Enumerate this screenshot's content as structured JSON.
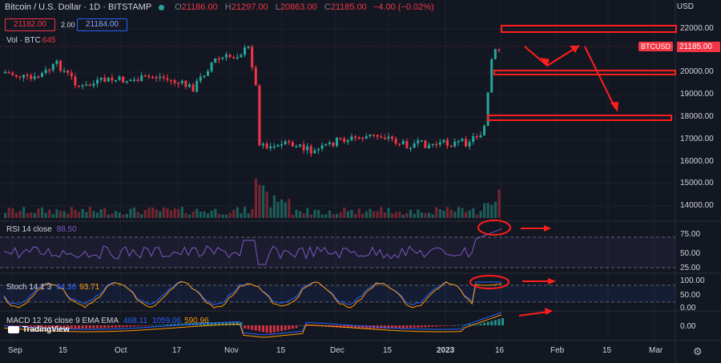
{
  "header": {
    "symbol_title": "Bitcoin / U.S. Dollar · 1D · BITSTAMP",
    "open_label": "O",
    "open": "21186.00",
    "high_label": "H",
    "high": "21297.00",
    "low_label": "L",
    "low": "20863.00",
    "close_label": "C",
    "close": "21185.00",
    "change": "−4.00 (−0.02%)"
  },
  "quote": {
    "bid": "21182.00",
    "spread": "2.00",
    "ask": "21184.00"
  },
  "volume": {
    "label": "Vol · BTC",
    "value": "645"
  },
  "price_axis": {
    "currency": "USD",
    "ticks": [
      "22000.00",
      "21000.00",
      "20000.00",
      "19000.00",
      "18000.00",
      "17000.00",
      "16000.00",
      "15000.00",
      "14000.00"
    ],
    "ticker_tag": "BTCUSD",
    "last_price": "21185.00"
  },
  "rsi": {
    "label": "RSI 14 close",
    "value": "88.50",
    "ticks": [
      "75.00",
      "50.00",
      "25.00"
    ]
  },
  "stoch": {
    "label": "Stoch 14 1 3",
    "k": "94.36",
    "d": "93.71",
    "ticks": [
      "100.00",
      "50.00",
      "0.00"
    ]
  },
  "macd": {
    "label": "MACD 12 26 close 9 EMA EMA",
    "v1": "468.11",
    "v2": "1059.06",
    "v3": "590.96",
    "ticks": [
      "0.00"
    ]
  },
  "time_axis": [
    "Sep",
    "15",
    "Oct",
    "17",
    "Nov",
    "15",
    "Dec",
    "15",
    "2023",
    "16",
    "Feb",
    "15",
    "Mar"
  ],
  "branding": "TradingView",
  "colors": {
    "up": "#26a69a",
    "down": "#f23645",
    "background": "#131722",
    "annotation": "#ff1e1e",
    "rsi": "#7e57c2",
    "stoch_k": "#2962ff",
    "stoch_d": "#ff9800"
  }
}
